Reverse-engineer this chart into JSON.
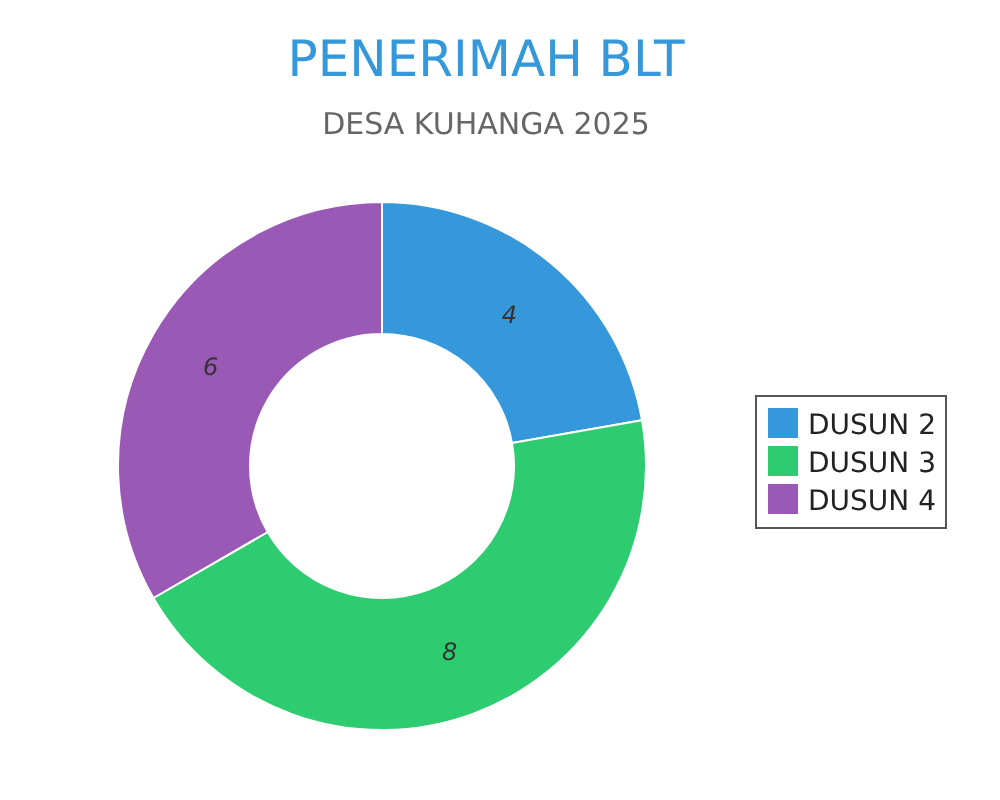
{
  "chart_data": {
    "type": "donut",
    "title": "PENERIMAH BLT",
    "subtitle": "DESA KUHANGA 2025",
    "categories": [
      "DUSUN 2",
      "DUSUN 3",
      "DUSUN 4"
    ],
    "values": [
      4,
      8,
      6
    ],
    "colors": [
      "#3498db",
      "#2ecc71",
      "#9b59b6"
    ],
    "data_labels": true,
    "legend": "right"
  }
}
